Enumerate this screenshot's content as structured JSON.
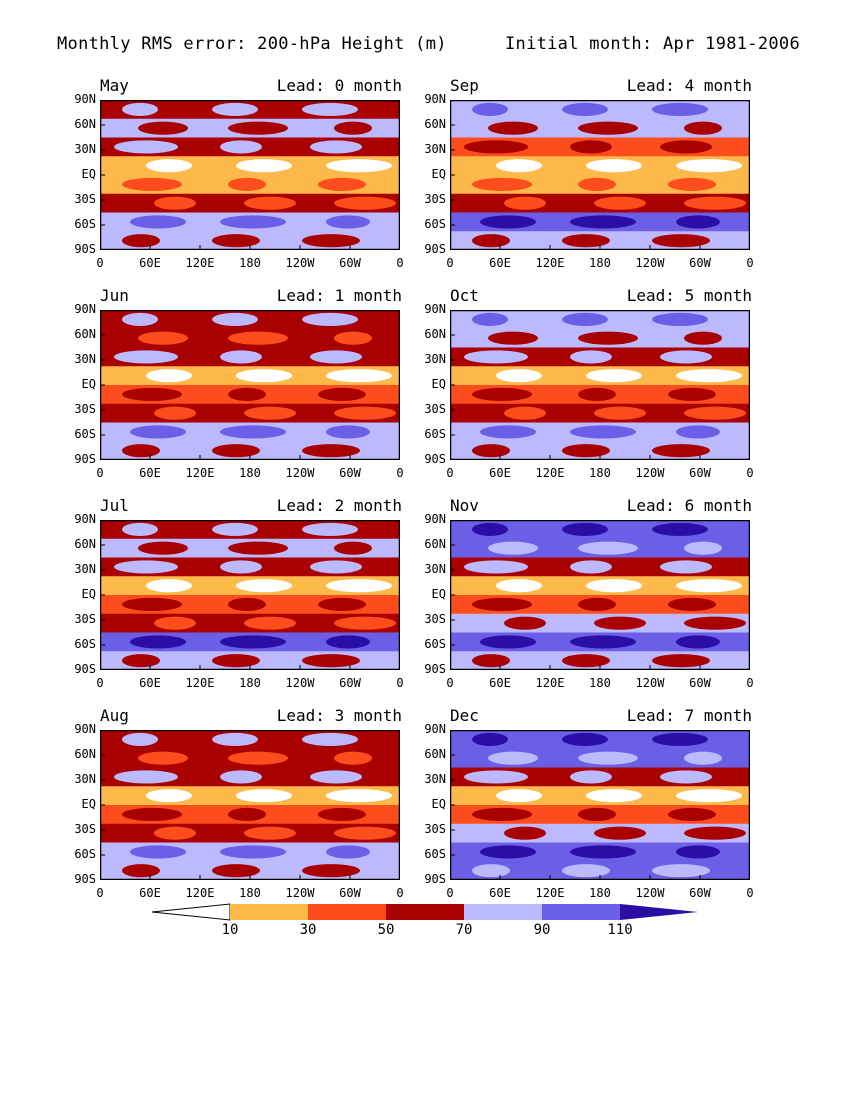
{
  "title": {
    "left": "Monthly RMS error: 200-hPa Height (m)",
    "right": "Initial month: Apr 1981-2006"
  },
  "lat_labels": [
    "90N",
    "60N",
    "30N",
    "EQ",
    "30S",
    "60S",
    "90S"
  ],
  "lon_labels": [
    "0",
    "60E",
    "120E",
    "180",
    "120W",
    "60W",
    "0"
  ],
  "panels": [
    {
      "month": "May",
      "lead": "Lead: 0 month"
    },
    {
      "month": "Sep",
      "lead": "Lead: 4 month"
    },
    {
      "month": "Jun",
      "lead": "Lead: 1 month"
    },
    {
      "month": "Oct",
      "lead": "Lead: 5 month"
    },
    {
      "month": "Jul",
      "lead": "Lead: 2 month"
    },
    {
      "month": "Nov",
      "lead": "Lead: 6 month"
    },
    {
      "month": "Aug",
      "lead": "Lead: 3 month"
    },
    {
      "month": "Dec",
      "lead": "Lead: 7 month"
    }
  ],
  "colorbar": {
    "levels": [
      "10",
      "30",
      "50",
      "70",
      "90",
      "110"
    ],
    "colors": [
      "#ffffff",
      "#fdb94a",
      "#fe4d1c",
      "#a90000",
      "#bdb9ff",
      "#6a5fe6",
      "#2a0ea6"
    ]
  },
  "chart_data": {
    "type": "heatmap",
    "title": "Monthly RMS error: 200-hPa Height (m)",
    "subtitle": "Initial month: Apr 1981-2006",
    "variable": "RMS error of 200-hPa height (m)",
    "xaxis": {
      "ticks": [
        "0",
        "60E",
        "120E",
        "180",
        "120W",
        "60W",
        "0"
      ]
    },
    "yaxis": {
      "ticks": [
        "90N",
        "60N",
        "30N",
        "EQ",
        "30S",
        "60S",
        "90S"
      ]
    },
    "contour_levels": [
      10,
      30,
      50,
      70,
      90,
      110
    ],
    "panels": [
      {
        "month": "May",
        "lead": 0,
        "zonal_profile_rms": [
          60,
          72,
          58,
          12,
          28,
          55,
          82,
          80
        ]
      },
      {
        "month": "Sep",
        "lead": 4,
        "zonal_profile_rms": [
          80,
          78,
          48,
          25,
          28,
          65,
          90,
          85
        ]
      },
      {
        "month": "Jun",
        "lead": 1,
        "zonal_profile_rms": [
          62,
          68,
          55,
          22,
          30,
          60,
          85,
          82
        ]
      },
      {
        "month": "Oct",
        "lead": 5,
        "zonal_profile_rms": [
          88,
          82,
          52,
          25,
          32,
          68,
          88,
          78
        ]
      },
      {
        "month": "Jul",
        "lead": 2,
        "zonal_profile_rms": [
          65,
          70,
          55,
          24,
          32,
          62,
          90,
          86
        ]
      },
      {
        "month": "Nov",
        "lead": 6,
        "zonal_profile_rms": [
          95,
          92,
          55,
          26,
          34,
          72,
          95,
          80
        ]
      },
      {
        "month": "Aug",
        "lead": 3,
        "zonal_profile_rms": [
          64,
          68,
          52,
          18,
          30,
          62,
          88,
          84
        ]
      },
      {
        "month": "Dec",
        "lead": 7,
        "zonal_profile_rms": [
          108,
          100,
          60,
          28,
          35,
          78,
          100,
          92
        ]
      }
    ]
  }
}
